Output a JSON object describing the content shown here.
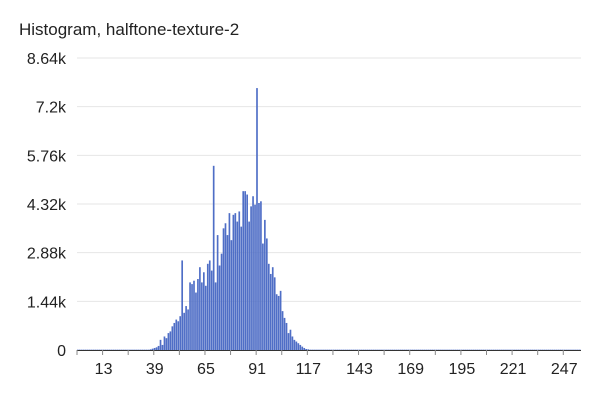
{
  "chart_data": {
    "type": "bar",
    "title": "Histogram, halftone-texture-2",
    "xlabel": "",
    "ylabel": "",
    "xlim": [
      0,
      255
    ],
    "ylim": [
      0,
      8640
    ],
    "yticks": [
      "8.64k",
      "7.2k",
      "5.76k",
      "4.32k",
      "2.88k",
      "1.44k",
      "0"
    ],
    "ytick_values": [
      8640,
      7200,
      5760,
      4320,
      2880,
      1440,
      0
    ],
    "xticks": [
      "13",
      "39",
      "65",
      "91",
      "117",
      "143",
      "169",
      "195",
      "221",
      "247"
    ],
    "xtick_values": [
      13,
      39,
      65,
      91,
      117,
      143,
      169,
      195,
      221,
      247
    ],
    "grid": true,
    "color": "#4f6ec6",
    "bins": [
      [
        0,
        10
      ],
      [
        1,
        10
      ],
      [
        2,
        10
      ],
      [
        3,
        10
      ],
      [
        4,
        10
      ],
      [
        5,
        10
      ],
      [
        6,
        10
      ],
      [
        7,
        10
      ],
      [
        8,
        10
      ],
      [
        9,
        10
      ],
      [
        10,
        10
      ],
      [
        11,
        10
      ],
      [
        12,
        10
      ],
      [
        13,
        10
      ],
      [
        14,
        10
      ],
      [
        15,
        10
      ],
      [
        16,
        10
      ],
      [
        17,
        10
      ],
      [
        18,
        10
      ],
      [
        19,
        10
      ],
      [
        20,
        10
      ],
      [
        21,
        10
      ],
      [
        22,
        10
      ],
      [
        23,
        10
      ],
      [
        24,
        10
      ],
      [
        25,
        10
      ],
      [
        26,
        10
      ],
      [
        27,
        10
      ],
      [
        28,
        10
      ],
      [
        29,
        10
      ],
      [
        30,
        10
      ],
      [
        31,
        10
      ],
      [
        32,
        10
      ],
      [
        33,
        10
      ],
      [
        34,
        10
      ],
      [
        35,
        10
      ],
      [
        36,
        10
      ],
      [
        37,
        20
      ],
      [
        38,
        40
      ],
      [
        39,
        60
      ],
      [
        40,
        80
      ],
      [
        41,
        120
      ],
      [
        42,
        300
      ],
      [
        43,
        150
      ],
      [
        44,
        400
      ],
      [
        45,
        350
      ],
      [
        46,
        500
      ],
      [
        47,
        550
      ],
      [
        48,
        700
      ],
      [
        49,
        800
      ],
      [
        50,
        900
      ],
      [
        51,
        850
      ],
      [
        52,
        1000
      ],
      [
        53,
        2650
      ],
      [
        54,
        1100
      ],
      [
        55,
        1300
      ],
      [
        56,
        1200
      ],
      [
        57,
        2000
      ],
      [
        58,
        1950
      ],
      [
        59,
        2050
      ],
      [
        60,
        1700
      ],
      [
        61,
        2100
      ],
      [
        62,
        2450
      ],
      [
        63,
        2000
      ],
      [
        64,
        2300
      ],
      [
        65,
        1900
      ],
      [
        66,
        2550
      ],
      [
        67,
        2650
      ],
      [
        68,
        2350
      ],
      [
        69,
        5450
      ],
      [
        70,
        2000
      ],
      [
        71,
        3400
      ],
      [
        72,
        2500
      ],
      [
        73,
        2850
      ],
      [
        74,
        3600
      ],
      [
        75,
        3750
      ],
      [
        76,
        3400
      ],
      [
        77,
        4050
      ],
      [
        78,
        3250
      ],
      [
        79,
        4000
      ],
      [
        80,
        4050
      ],
      [
        81,
        3800
      ],
      [
        82,
        4100
      ],
      [
        83,
        3650
      ],
      [
        84,
        4700
      ],
      [
        85,
        4700
      ],
      [
        86,
        4600
      ],
      [
        87,
        3800
      ],
      [
        88,
        4250
      ],
      [
        89,
        4550
      ],
      [
        90,
        4300
      ],
      [
        91,
        7750
      ],
      [
        92,
        4350
      ],
      [
        93,
        4400
      ],
      [
        94,
        3150
      ],
      [
        95,
        3850
      ],
      [
        96,
        3300
      ],
      [
        97,
        2550
      ],
      [
        98,
        2250
      ],
      [
        99,
        2450
      ],
      [
        100,
        2150
      ],
      [
        101,
        1650
      ],
      [
        102,
        1600
      ],
      [
        103,
        1750
      ],
      [
        104,
        1150
      ],
      [
        105,
        950
      ],
      [
        106,
        800
      ],
      [
        107,
        500
      ],
      [
        108,
        600
      ],
      [
        109,
        400
      ],
      [
        110,
        300
      ],
      [
        111,
        250
      ],
      [
        112,
        200
      ],
      [
        113,
        150
      ],
      [
        114,
        100
      ],
      [
        115,
        60
      ],
      [
        116,
        30
      ],
      [
        117,
        20
      ],
      [
        118,
        10
      ],
      [
        119,
        10
      ],
      [
        120,
        10
      ],
      [
        121,
        10
      ],
      [
        122,
        10
      ],
      [
        123,
        10
      ],
      [
        124,
        10
      ],
      [
        125,
        10
      ],
      [
        126,
        10
      ],
      [
        127,
        10
      ],
      [
        128,
        10
      ],
      [
        129,
        10
      ],
      [
        130,
        10
      ],
      [
        131,
        10
      ],
      [
        132,
        10
      ],
      [
        133,
        10
      ],
      [
        134,
        10
      ],
      [
        135,
        10
      ],
      [
        136,
        10
      ],
      [
        137,
        10
      ],
      [
        138,
        10
      ],
      [
        139,
        10
      ],
      [
        140,
        10
      ],
      [
        141,
        10
      ],
      [
        142,
        10
      ],
      [
        143,
        10
      ],
      [
        144,
        10
      ],
      [
        145,
        10
      ],
      [
        146,
        10
      ],
      [
        147,
        10
      ],
      [
        148,
        10
      ],
      [
        149,
        10
      ],
      [
        150,
        10
      ],
      [
        151,
        10
      ],
      [
        152,
        10
      ],
      [
        153,
        10
      ],
      [
        154,
        10
      ],
      [
        155,
        10
      ],
      [
        156,
        10
      ],
      [
        157,
        10
      ],
      [
        158,
        10
      ],
      [
        159,
        10
      ],
      [
        160,
        10
      ],
      [
        161,
        10
      ],
      [
        162,
        10
      ],
      [
        163,
        10
      ],
      [
        164,
        10
      ],
      [
        165,
        10
      ],
      [
        166,
        10
      ],
      [
        167,
        10
      ],
      [
        168,
        10
      ],
      [
        169,
        10
      ],
      [
        170,
        10
      ],
      [
        171,
        10
      ],
      [
        172,
        10
      ],
      [
        173,
        10
      ],
      [
        174,
        10
      ],
      [
        175,
        10
      ],
      [
        176,
        10
      ],
      [
        177,
        10
      ],
      [
        178,
        10
      ],
      [
        179,
        10
      ],
      [
        180,
        10
      ],
      [
        181,
        10
      ],
      [
        182,
        10
      ],
      [
        183,
        10
      ],
      [
        184,
        10
      ],
      [
        185,
        10
      ],
      [
        186,
        10
      ],
      [
        187,
        10
      ],
      [
        188,
        10
      ],
      [
        189,
        10
      ],
      [
        190,
        10
      ],
      [
        191,
        10
      ],
      [
        192,
        10
      ],
      [
        193,
        10
      ],
      [
        194,
        10
      ],
      [
        195,
        10
      ],
      [
        196,
        10
      ],
      [
        197,
        10
      ],
      [
        198,
        10
      ],
      [
        199,
        10
      ],
      [
        200,
        10
      ],
      [
        201,
        10
      ],
      [
        202,
        10
      ],
      [
        203,
        10
      ],
      [
        204,
        10
      ],
      [
        205,
        10
      ],
      [
        206,
        10
      ],
      [
        207,
        10
      ],
      [
        208,
        10
      ],
      [
        209,
        10
      ],
      [
        210,
        10
      ],
      [
        211,
        10
      ],
      [
        212,
        10
      ],
      [
        213,
        10
      ],
      [
        214,
        10
      ],
      [
        215,
        10
      ],
      [
        216,
        10
      ],
      [
        217,
        10
      ],
      [
        218,
        10
      ],
      [
        219,
        10
      ],
      [
        220,
        10
      ],
      [
        221,
        10
      ],
      [
        222,
        10
      ],
      [
        223,
        10
      ],
      [
        224,
        10
      ],
      [
        225,
        10
      ],
      [
        226,
        10
      ],
      [
        227,
        10
      ],
      [
        228,
        10
      ],
      [
        229,
        10
      ],
      [
        230,
        10
      ],
      [
        231,
        10
      ],
      [
        232,
        10
      ],
      [
        233,
        10
      ],
      [
        234,
        10
      ],
      [
        235,
        10
      ],
      [
        236,
        10
      ],
      [
        237,
        10
      ],
      [
        238,
        10
      ],
      [
        239,
        10
      ],
      [
        240,
        10
      ],
      [
        241,
        10
      ],
      [
        242,
        10
      ],
      [
        243,
        10
      ],
      [
        244,
        10
      ],
      [
        245,
        10
      ],
      [
        246,
        10
      ],
      [
        247,
        10
      ],
      [
        248,
        10
      ],
      [
        249,
        10
      ],
      [
        250,
        10
      ],
      [
        251,
        10
      ],
      [
        252,
        10
      ],
      [
        253,
        10
      ],
      [
        254,
        10
      ],
      [
        255,
        10
      ]
    ]
  }
}
